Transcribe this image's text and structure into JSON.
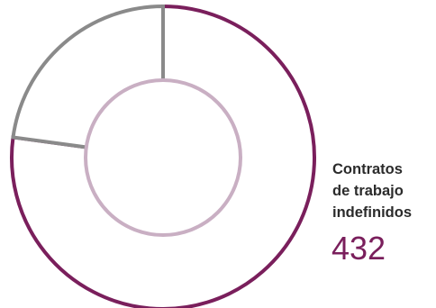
{
  "chart_data": {
    "type": "pie",
    "style": "donut",
    "series": [
      {
        "value": 432,
        "color": "#7a1f5c"
      },
      {
        "value": 128,
        "color": "#8a8a8a"
      }
    ],
    "inner_circle_color": "#c9afc3",
    "legend": "none"
  },
  "callout": {
    "label_lines": [
      "Contratos",
      "de trabajo",
      "indefinidos"
    ],
    "value": "432",
    "value_color": "#7a1f5c"
  }
}
